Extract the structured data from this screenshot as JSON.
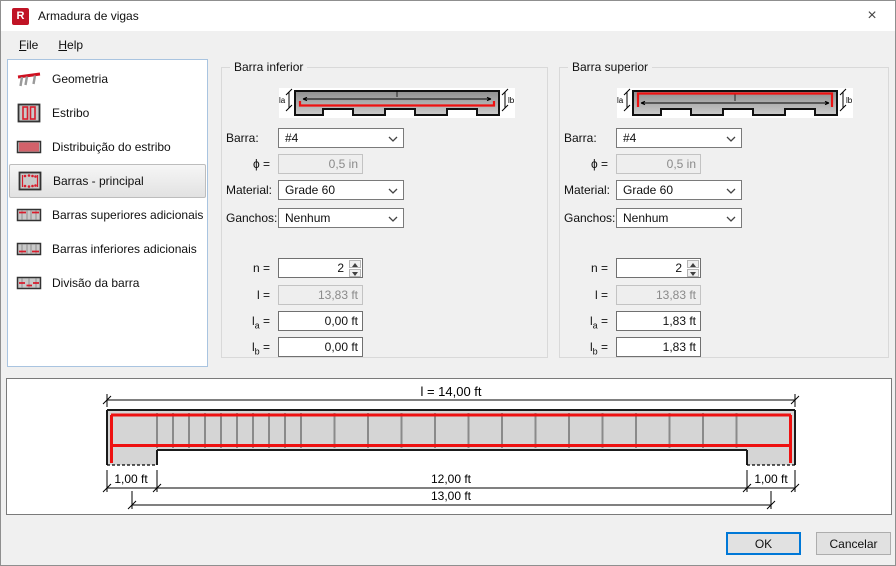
{
  "window": {
    "title": "Armadura de vigas",
    "close_glyph": "×"
  },
  "menu": {
    "items": [
      {
        "label": "File"
      },
      {
        "label": "Help"
      }
    ]
  },
  "sidebar": {
    "selected_index": 3,
    "items": [
      {
        "label": "Geometria",
        "icon": "geometry-icon"
      },
      {
        "label": "Estribo",
        "icon": "stirrup-icon"
      },
      {
        "label": "Distribuição do estribo",
        "icon": "stirrup-distribution-icon"
      },
      {
        "label": "Barras - principal",
        "icon": "main-bars-icon"
      },
      {
        "label": "Barras superiores adicionais",
        "icon": "additional-top-bars-icon"
      },
      {
        "label": "Barras inferiores adicionais",
        "icon": "additional-bottom-bars-icon"
      },
      {
        "label": "Divisão da barra",
        "icon": "bar-division-icon"
      }
    ]
  },
  "panels": [
    {
      "title": "Barra inferior",
      "variant": "bottom",
      "inset_labels": {
        "l": "l",
        "la": "la",
        "lb": "lb"
      },
      "labels": {
        "barra": "Barra:",
        "phi": "ϕ =",
        "material": "Material:",
        "ganchos": "Ganchos:",
        "n": "n =",
        "l": "l =",
        "la_main": "l",
        "la_sub": "a",
        "lb_main": "l",
        "lb_sub": "b",
        "eq": "="
      },
      "values": {
        "barra": "#4",
        "phi": "0,5 in",
        "material": "Grade 60",
        "ganchos": "Nenhum",
        "n": "2",
        "l": "13,83 ft",
        "la": "0,00 ft",
        "lb": "0,00 ft"
      }
    },
    {
      "title": "Barra superior",
      "variant": "top",
      "inset_labels": {
        "l": "l",
        "la": "la",
        "lb": "lb"
      },
      "labels": {
        "barra": "Barra:",
        "phi": "ϕ =",
        "material": "Material:",
        "ganchos": "Ganchos:",
        "n": "n =",
        "l": "l =",
        "la_main": "l",
        "la_sub": "a",
        "lb_main": "l",
        "lb_sub": "b",
        "eq": "="
      },
      "values": {
        "barra": "#4",
        "phi": "0,5 in",
        "material": "Grade 60",
        "ganchos": "Nenhum",
        "n": "2",
        "l": "13,83 ft",
        "la": "1,83 ft",
        "lb": "1,83 ft"
      }
    }
  ],
  "diagram": {
    "total_label": "l = 14,00 ft",
    "span_label": "12,00 ft",
    "overall_label": "13,00 ft",
    "left_offset_label": "1,00 ft",
    "right_offset_label": "1,00 ft"
  },
  "buttons": {
    "ok": "OK",
    "cancel": "Cancelar"
  },
  "colors": {
    "bar_red": "#ee1111",
    "icon_red": "#d81d2c",
    "beam_gray": "#d5d5d5",
    "default_button_border": "#0078d7",
    "app_icon_red": "#c01325"
  }
}
